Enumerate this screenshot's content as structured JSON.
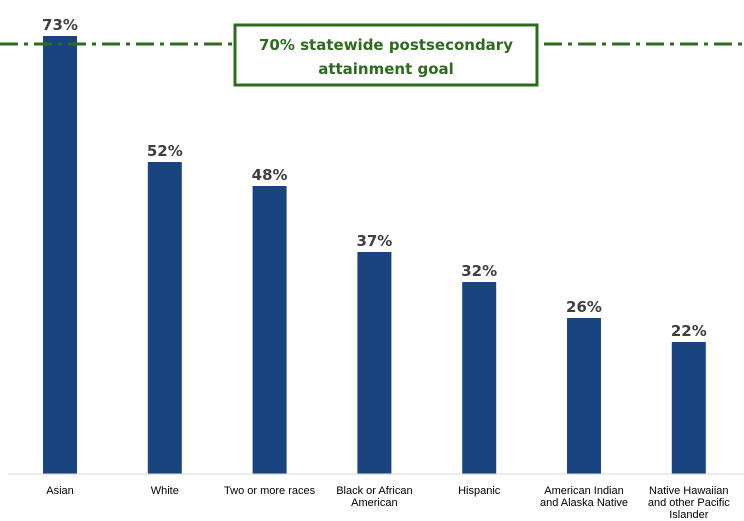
{
  "chart_data": {
    "type": "bar",
    "categories": [
      [
        "Asian"
      ],
      [
        "White"
      ],
      [
        "Two or more races"
      ],
      [
        "Black or African",
        "American"
      ],
      [
        "Hispanic"
      ],
      [
        "American Indian",
        "and Alaska Native"
      ],
      [
        "Native Hawaiian",
        "and other Pacific",
        "Islander"
      ]
    ],
    "values": [
      73,
      52,
      48,
      37,
      32,
      26,
      22
    ],
    "value_labels": [
      "73%",
      "52%",
      "48%",
      "37%",
      "32%",
      "26%",
      "22%"
    ],
    "ylim": [
      0,
      74
    ],
    "grid": false,
    "bar_color": "#1a4480",
    "reference_line": {
      "value": 70,
      "label_lines": [
        "70% statewide postsecondary",
        "attainment goal"
      ],
      "color": "#2e6b1f",
      "style": "dash-dot"
    }
  }
}
